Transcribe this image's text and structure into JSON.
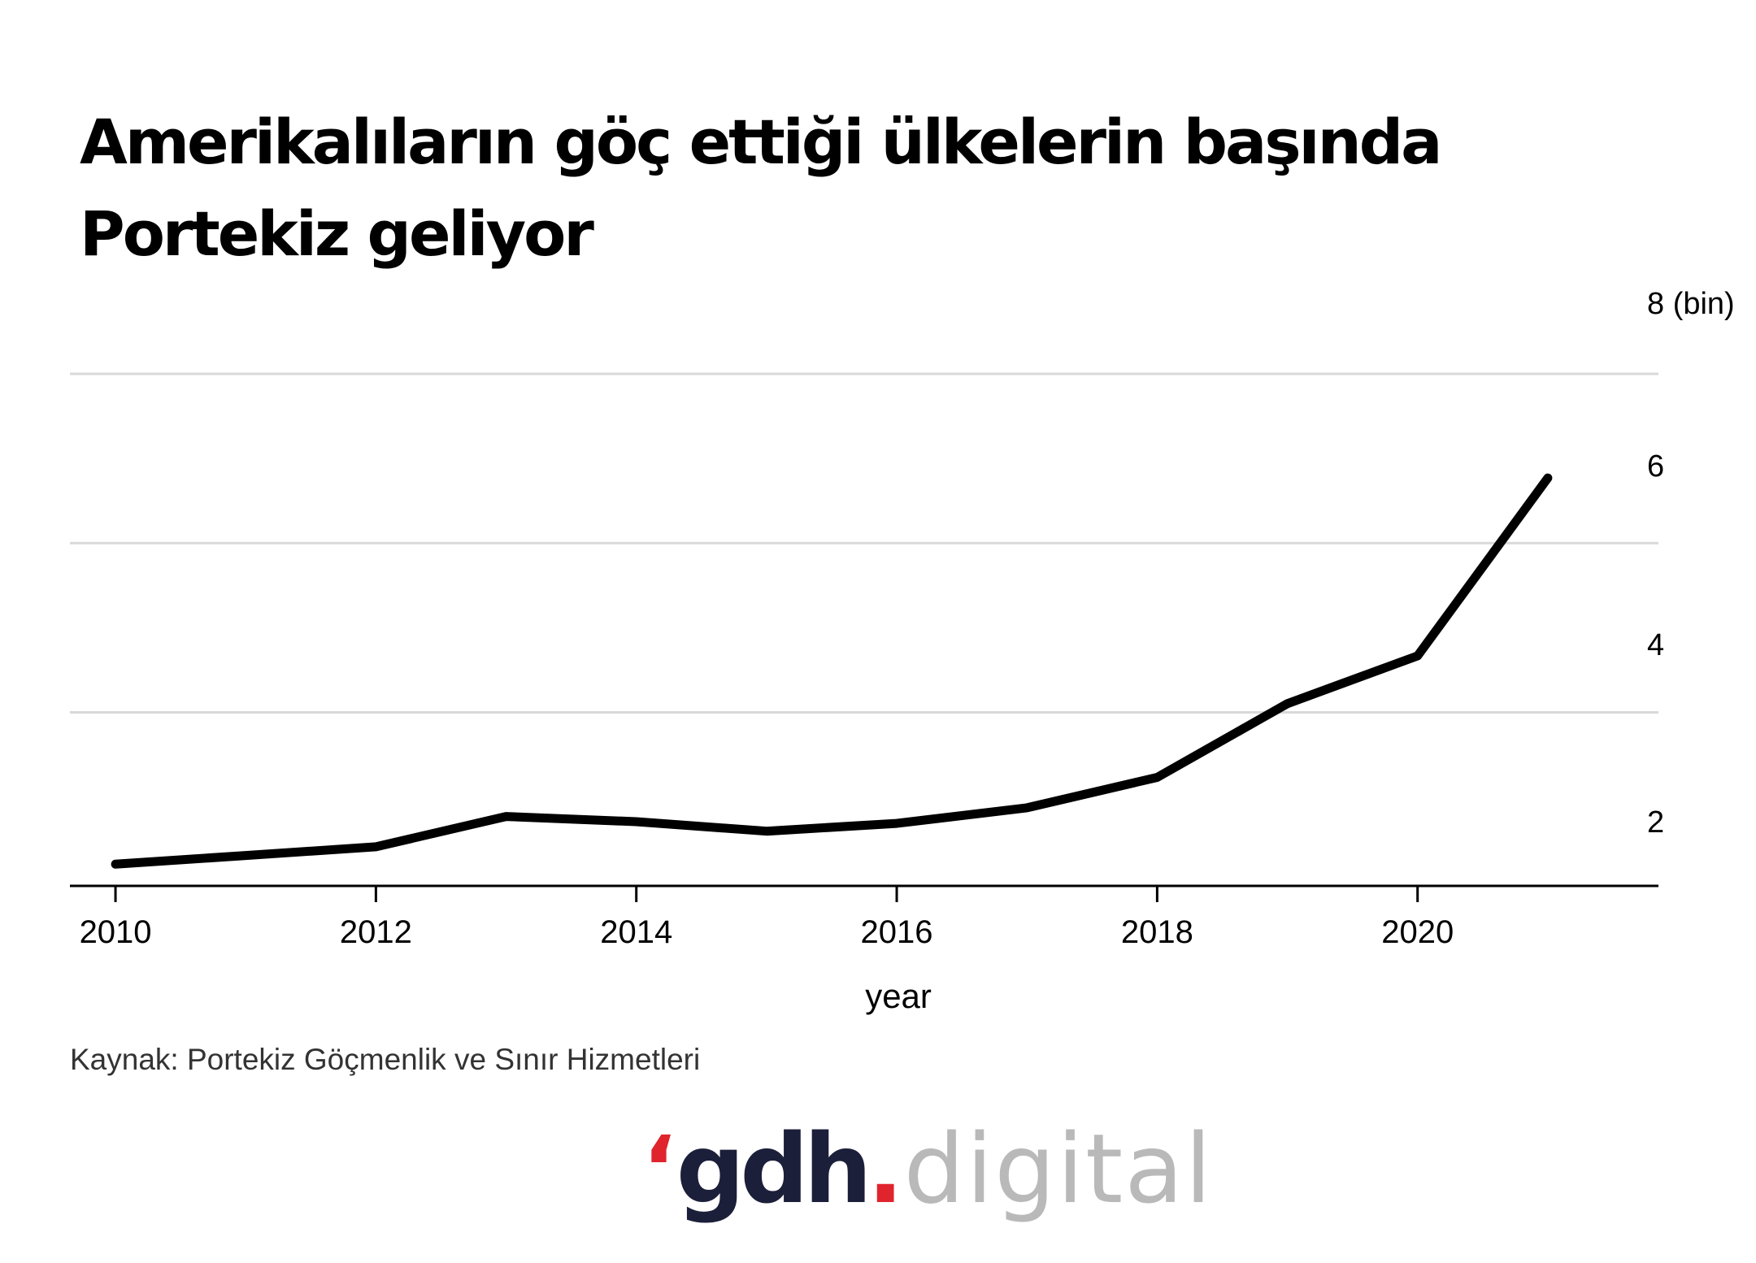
{
  "title_lines": [
    "Amerikalıların göç ettiği ülkelerin başında",
    "Portekiz geliyor"
  ],
  "source": "Kaynak: Portekiz Göçmenlik ve Sınır Hizmetleri",
  "logo": {
    "mark": "‘",
    "brand": "gdh",
    "dot": ".",
    "word": "digital"
  },
  "colors": {
    "line": "#000000",
    "grid": "#d9d9d9",
    "logo_accent": "#e0242d",
    "logo_brand": "#1c1f3a",
    "logo_word": "#b9b9b9"
  },
  "chart_data": {
    "type": "line",
    "x": [
      2010,
      2011,
      2012,
      2013,
      2014,
      2015,
      2016,
      2017,
      2018,
      2019,
      2020,
      2021
    ],
    "series": [
      {
        "values": [
          1.55,
          1.65,
          1.75,
          2.1,
          2.04,
          1.93,
          2.02,
          2.2,
          2.55,
          3.4,
          3.95,
          6.0
        ]
      }
    ],
    "xlabel": "year",
    "ylabel": "",
    "xlim": [
      2009.65,
      2021.85
    ],
    "ylim": [
      1.3,
      7.2
    ],
    "x_ticks": [
      2010,
      2012,
      2014,
      2016,
      2018,
      2020
    ],
    "x_tick_labels": [
      "2010",
      "2012",
      "2014",
      "2016",
      "2018",
      "2020"
    ],
    "y_tick_labels": [
      {
        "value": 8,
        "label": "8 (bin)"
      },
      {
        "value": 6,
        "label": "6"
      },
      {
        "value": 4,
        "label": "4"
      },
      {
        "value": 2,
        "label": "2"
      }
    ],
    "grid_values": [
      7.2,
      5.25,
      3.3
    ],
    "grid": true,
    "y_axis_side": "right"
  }
}
